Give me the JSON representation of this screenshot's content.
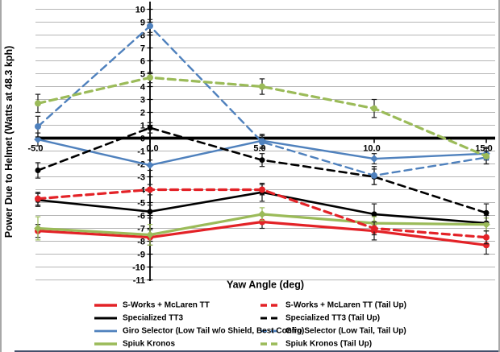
{
  "page": {
    "background": "#ffffff",
    "side_border_color": "#a8a8a8",
    "bottom_edge_color": "#44506b"
  },
  "chart_data": {
    "type": "line",
    "title": "",
    "xlabel": "Yaw Angle (deg)",
    "ylabel": "Power Due to Helmet (Watts at 48.3 kph)",
    "grid": true,
    "gridline_color": "#b5b5b5",
    "axis_color": "#000000",
    "legend_position": "bottom, two columns (solid helmets left, Tail Up variants right)",
    "x": [
      -5,
      0,
      5,
      10,
      15
    ],
    "xtick_labels": [
      "-5.0",
      "0.0",
      "5.0",
      "10.0",
      "15.0"
    ],
    "ylim": [
      -11,
      10
    ],
    "ytick_values": [
      10,
      9,
      8,
      7,
      6,
      5,
      4,
      3,
      2,
      1,
      0,
      -1,
      -2,
      -3,
      -4,
      -5,
      -6,
      -7,
      -8,
      -9,
      -10,
      -11
    ],
    "ytick_labels": [
      "10",
      "9",
      "8",
      "7",
      "6",
      "5",
      "4",
      "3",
      "2",
      "1",
      "0",
      "-1",
      "-2",
      "-3",
      "-4",
      "-5",
      "-6",
      "-7",
      "-8",
      "-9",
      "-10",
      "-11"
    ],
    "series": [
      {
        "name": "S-Works + McLaren TT",
        "color": "#e32227",
        "err_color": "#1a1a1a",
        "dash": false,
        "width": 3.2,
        "marker": "circle",
        "values": [
          -7.2,
          -7.7,
          -6.5,
          -7.2,
          -8.3
        ],
        "err": [
          0.5,
          0.6,
          0.5,
          0.7,
          0.7
        ]
      },
      {
        "name": "Specialized TT3",
        "color": "#000000",
        "err_color": "#1a1a1a",
        "dash": false,
        "width": 2.6,
        "marker": "circle",
        "values": [
          -4.8,
          -5.7,
          -4.2,
          -5.9,
          -6.6
        ],
        "err": [
          0.5,
          0.5,
          0.7,
          0.8,
          0.6
        ]
      },
      {
        "name": "Giro Selector (Low Tail w/o Shield, Best Config)",
        "color": "#4f81bd",
        "err_color": "#1a1a1a",
        "dash": false,
        "width": 2.4,
        "marker": "diamond",
        "values": [
          -0.1,
          -2.1,
          -0.2,
          -1.6,
          -1.2
        ],
        "err": [
          0.5,
          0.4,
          0.5,
          0.4,
          0.5
        ]
      },
      {
        "name": "Spiuk Kronos",
        "color": "#9bbb59",
        "err_color": "#9bbb59",
        "dash": false,
        "width": 3.2,
        "marker": "diamond",
        "values": [
          -7.0,
          -7.5,
          -5.9,
          -6.6,
          -6.7
        ],
        "err": [
          0.9,
          0.8,
          0.5,
          0.5,
          0.5
        ]
      },
      {
        "name": "S-Works + McLaren TT (Tail Up)",
        "color": "#e32227",
        "err_color": "#1a1a1a",
        "dash": true,
        "width": 3.2,
        "marker": "circle",
        "values": [
          -4.7,
          -4.0,
          -4.0,
          -7.0,
          -7.7
        ],
        "err": [
          0.5,
          0.4,
          0.4,
          0.5,
          0.5
        ]
      },
      {
        "name": "Specialized TT3 (Tail Up)",
        "color": "#000000",
        "err_color": "#1a1a1a",
        "dash": true,
        "width": 2.6,
        "marker": "circle",
        "values": [
          -2.5,
          0.8,
          -1.7,
          -3.0,
          -5.8
        ],
        "err": [
          0.6,
          0.4,
          0.5,
          0.6,
          0.7
        ]
      },
      {
        "name": "Giro Selector (Low Tail, Tail Up)",
        "color": "#4f81bd",
        "err_color": "#1a1a1a",
        "dash": true,
        "width": 2.4,
        "marker": "circle",
        "values": [
          0.9,
          8.7,
          -0.3,
          -2.9,
          -1.5
        ],
        "err": [
          0.8,
          0.5,
          0.5,
          0.7,
          0.5
        ]
      },
      {
        "name": "Spiuk Kronos (Tail Up)",
        "color": "#9bbb59",
        "err_color": "#1a1a1a",
        "dash": true,
        "width": 3.2,
        "marker": "circle",
        "values": [
          2.7,
          4.7,
          4.0,
          2.3,
          -1.4
        ],
        "err": [
          0.7,
          0.4,
          0.6,
          0.7,
          0.6
        ]
      }
    ]
  }
}
